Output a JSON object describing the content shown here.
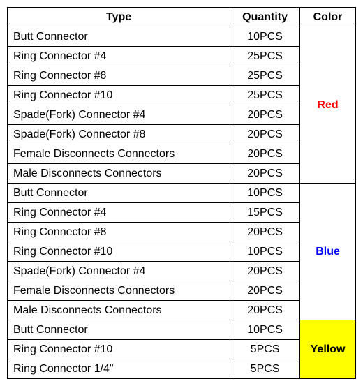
{
  "table": {
    "headers": {
      "type": "Type",
      "quantity": "Quantity",
      "color": "Color"
    },
    "columns": {
      "type_width": 320,
      "qty_width": 100,
      "color_width": 80
    },
    "groups": [
      {
        "color_label": "Red",
        "color_text": "#ff0000",
        "color_bg": "#ffffff",
        "rows": [
          {
            "type": "Butt Connector",
            "qty": "10PCS"
          },
          {
            "type": "Ring Connector #4",
            "qty": "25PCS"
          },
          {
            "type": "Ring Connector #8",
            "qty": "25PCS"
          },
          {
            "type": "Ring Connector #10",
            "qty": "25PCS"
          },
          {
            "type": "Spade(Fork) Connector #4",
            "qty": "20PCS"
          },
          {
            "type": "Spade(Fork) Connector #8",
            "qty": "20PCS"
          },
          {
            "type": "Female Disconnects Connectors",
            "qty": "20PCS"
          },
          {
            "type": "Male Disconnects Connectors",
            "qty": "20PCS"
          }
        ]
      },
      {
        "color_label": "Blue",
        "color_text": "#0000ff",
        "color_bg": "#ffffff",
        "rows": [
          {
            "type": "Butt Connector",
            "qty": "10PCS"
          },
          {
            "type": "Ring Connector #4",
            "qty": "15PCS"
          },
          {
            "type": "Ring Connector #8",
            "qty": "20PCS"
          },
          {
            "type": "Ring Connector #10",
            "qty": "10PCS"
          },
          {
            "type": "Spade(Fork) Connector #4",
            "qty": "20PCS"
          },
          {
            "type": "Female Disconnects Connectors",
            "qty": "20PCS"
          },
          {
            "type": "Male Disconnects Connectors",
            "qty": "20PCS"
          }
        ]
      },
      {
        "color_label": "Yellow",
        "color_text": "#000000",
        "color_bg": "#ffff00",
        "rows": [
          {
            "type": "Butt Connector",
            "qty": "10PCS"
          },
          {
            "type": "Ring Connector #10",
            "qty": "5PCS"
          },
          {
            "type": "Ring Connector 1/4\"",
            "qty": "5PCS"
          }
        ]
      }
    ],
    "border_color": "#000000",
    "background_color": "#ffffff",
    "font_size": 16
  }
}
